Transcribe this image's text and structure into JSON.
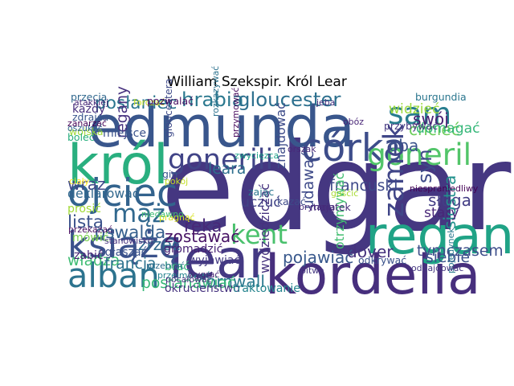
{
  "chart_data": {
    "type": "wordcloud",
    "title": "William Szekspir. Król Lear",
    "words": [
      {
        "text": "edgar",
        "weight": 100,
        "color": "#453781"
      },
      {
        "text": "edmunda",
        "weight": 70,
        "color": "#39568c"
      },
      {
        "text": "lear",
        "weight": 66,
        "color": "#443983"
      },
      {
        "text": "kordelia",
        "weight": 47,
        "color": "#472f7d"
      },
      {
        "text": "król",
        "weight": 47,
        "color": "#29af7f"
      },
      {
        "text": "regan",
        "weight": 44,
        "color": "#20a386"
      },
      {
        "text": "ojciec",
        "weight": 30,
        "color": "#33638d"
      },
      {
        "text": "córka",
        "weight": 30,
        "color": "#3d4d8a"
      },
      {
        "text": "książę",
        "weight": 28,
        "color": "#3b528b"
      },
      {
        "text": "alban",
        "weight": 25,
        "color": "#2c738e"
      },
      {
        "text": "goneril",
        "weight": 22,
        "color": "#52c569"
      },
      {
        "text": "gonerili",
        "weight": 20,
        "color": "#414487"
      },
      {
        "text": "sam",
        "weight": 22,
        "color": "#287d8e"
      },
      {
        "text": "zamek",
        "weight": 20,
        "color": "#404688"
      },
      {
        "text": "mąż",
        "weight": 17,
        "color": "#31688e"
      },
      {
        "text": "kent",
        "weight": 18,
        "color": "#4ac16d"
      },
      {
        "text": "hrabia",
        "weight": 12,
        "color": "#2a788e"
      },
      {
        "text": "gloucester",
        "weight": 12,
        "color": "#2d708e"
      },
      {
        "text": "posłaniec",
        "weight": 10,
        "color": "#2a768e"
      },
      {
        "text": "syn",
        "weight": 12,
        "color": "#3e4a89"
      },
      {
        "text": "oswalda",
        "weight": 10,
        "color": "#355f8d"
      },
      {
        "text": "lista",
        "weight": 10,
        "color": "#3b528b"
      },
      {
        "text": "ręka",
        "weight": 10,
        "color": "#482878"
      },
      {
        "text": "wraz",
        "weight": 9,
        "color": "#3e4989"
      },
      {
        "text": "zrzec",
        "weight": 9,
        "color": "#30698e"
      },
      {
        "text": "zostawać",
        "weight": 9,
        "color": "#471365"
      },
      {
        "text": "pojawiać",
        "weight": 9,
        "color": "#38588c"
      },
      {
        "text": "dover",
        "weight": 9,
        "color": "#46327e"
      },
      {
        "text": "cornwall",
        "weight": 9,
        "color": "#2a788e"
      },
      {
        "text": "postanawiać",
        "weight": 8,
        "color": "#37b878"
      },
      {
        "text": "oba",
        "weight": 9,
        "color": "#3b528b"
      },
      {
        "text": "chcieć",
        "weight": 9,
        "color": "#6ccd5a"
      },
      {
        "text": "swój",
        "weight": 9,
        "color": "#482173"
      },
      {
        "text": "sługa",
        "weight": 9,
        "color": "#433e85"
      },
      {
        "text": "siostra",
        "weight": 9,
        "color": "#21918c"
      },
      {
        "text": "francuski",
        "weight": 8,
        "color": "#3e4989"
      },
      {
        "text": "udawać",
        "weight": 8,
        "color": "#3e4a89"
      },
      {
        "text": "leara",
        "weight": 8,
        "color": "#2e6f8e"
      },
      {
        "text": "regany",
        "weight": 8,
        "color": "#46307e"
      },
      {
        "text": "władza",
        "weight": 8,
        "color": "#3fbc73"
      },
      {
        "text": "francja",
        "weight": 8,
        "color": "#2c728e"
      },
      {
        "text": "tymczasem",
        "weight": 8,
        "color": "#3d4e8a"
      },
      {
        "text": "siebie",
        "weight": 8,
        "color": "#3b518b"
      },
      {
        "text": "stary",
        "weight": 7,
        "color": "#482677"
      },
      {
        "text": "widzieć",
        "weight": 7,
        "color": "#9bd93c"
      },
      {
        "text": "domagać",
        "weight": 7,
        "color": "#35b779"
      },
      {
        "text": "uczuć",
        "weight": 7,
        "color": "#414487"
      },
      {
        "text": "znajdować",
        "weight": 6,
        "color": "#3e4c8a"
      },
      {
        "text": "wydziedziczać",
        "weight": 6,
        "color": "#46327e"
      },
      {
        "text": "otrzymywać",
        "weight": 6,
        "color": "#42be71"
      },
      {
        "text": "deklarować",
        "weight": 6,
        "color": "#31688e"
      },
      {
        "text": "prosić",
        "weight": 5,
        "color": "#a2da37"
      },
      {
        "text": "ogłaszać",
        "weight": 5,
        "color": "#3b528b"
      },
      {
        "text": "zabić",
        "weight": 5,
        "color": "#482475"
      },
      {
        "text": "mówić",
        "weight": 5,
        "color": "#7ad151"
      },
      {
        "text": "gromadzić",
        "weight": 5,
        "color": "#482173"
      },
      {
        "text": "wyjawiać",
        "weight": 5,
        "color": "#443a83"
      },
      {
        "text": "brać",
        "weight": 5,
        "color": "#37b878"
      },
      {
        "text": "okrucieństwo",
        "weight": 5,
        "color": "#46337f"
      },
      {
        "text": "traktowanie",
        "weight": 5,
        "color": "#25848e"
      },
      {
        "text": "miejsce",
        "weight": 5,
        "color": "#3b528b"
      },
      {
        "text": "każdy",
        "weight": 5,
        "color": "#472f7d"
      },
      {
        "text": "zdrajca",
        "weight": 4,
        "color": "#39568c"
      },
      {
        "text": "wojska",
        "weight": 4,
        "color": "#a0da39"
      },
      {
        "text": "boleć",
        "weight": 4,
        "color": "#29af7f"
      },
      {
        "text": "przecia",
        "weight": 4,
        "color": "#31688e"
      },
      {
        "text": "atakkiej",
        "weight": 3,
        "color": "#482878"
      },
      {
        "text": "zanarzać",
        "weight": 3,
        "color": "#440154"
      },
      {
        "text": "oszukać",
        "weight": 3,
        "color": "#31688e"
      },
      {
        "text": "forczać",
        "weight": 3,
        "color": "#c8e020"
      },
      {
        "text": "gloucestera",
        "weight": 4,
        "color": "#3e4a89"
      },
      {
        "text": "pozwalać",
        "weight": 4,
        "color": "#471063"
      },
      {
        "text": "rozkazywać",
        "weight": 3,
        "color": "#2c728e"
      },
      {
        "text": "przymować",
        "weight": 3,
        "color": "#46085c"
      },
      {
        "text": "burgundia",
        "weight": 4,
        "color": "#2a768e"
      },
      {
        "text": "przybywać",
        "weight": 4,
        "color": "#453882"
      },
      {
        "text": "obóz",
        "weight": 3,
        "color": "#482576"
      },
      {
        "text": "jeba",
        "weight": 3,
        "color": "#46307e"
      },
      {
        "text": "orszak",
        "weight": 3,
        "color": "#482979"
      },
      {
        "text": "kazać",
        "weight": 4,
        "color": "#3e4a89"
      },
      {
        "text": "majątek",
        "weight": 4,
        "color": "#472c7a"
      },
      {
        "text": "zając",
        "weight": 4,
        "color": "#2a768e"
      },
      {
        "text": "gin",
        "weight": 4,
        "color": "#39568c"
      },
      {
        "text": "pragnąć",
        "weight": 3,
        "color": "#d8e219"
      },
      {
        "text": "bitwa",
        "weight": 3,
        "color": "#453781"
      },
      {
        "text": "odkrywać",
        "weight": 4,
        "color": "#3b528b"
      },
      {
        "text": "pojedynek",
        "weight": 3,
        "color": "#2a788e"
      },
      {
        "text": "niespraniedliwy",
        "weight": 3,
        "color": "#440154"
      },
      {
        "text": "odnajdować",
        "weight": 3,
        "color": "#453781"
      },
      {
        "text": "brytania",
        "weight": 3,
        "color": "#472a7a"
      },
      {
        "text": "gośćić",
        "weight": 3,
        "color": "#a8db34"
      },
      {
        "text": "ciały",
        "weight": 3,
        "color": "#fde725"
      },
      {
        "text": "przekazać",
        "weight": 3,
        "color": "#470e61"
      },
      {
        "text": "przebrać",
        "weight": 3,
        "color": "#2e6e8e"
      },
      {
        "text": "niedawno",
        "weight": 3,
        "color": "#3fbc73"
      },
      {
        "text": "stanowisko",
        "weight": 3,
        "color": "#46337f"
      },
      {
        "text": "zwycięzca",
        "weight": 3,
        "color": "#1fa188"
      },
      {
        "text": "przejmować",
        "weight": 3,
        "color": "#25848e"
      },
      {
        "text": "pocałować",
        "weight": 3,
        "color": "#46327e"
      },
      {
        "text": "wygrać",
        "weight": 3,
        "color": "#482475"
      },
      {
        "text": "pokój",
        "weight": 3,
        "color": "#c2df23"
      }
    ]
  }
}
